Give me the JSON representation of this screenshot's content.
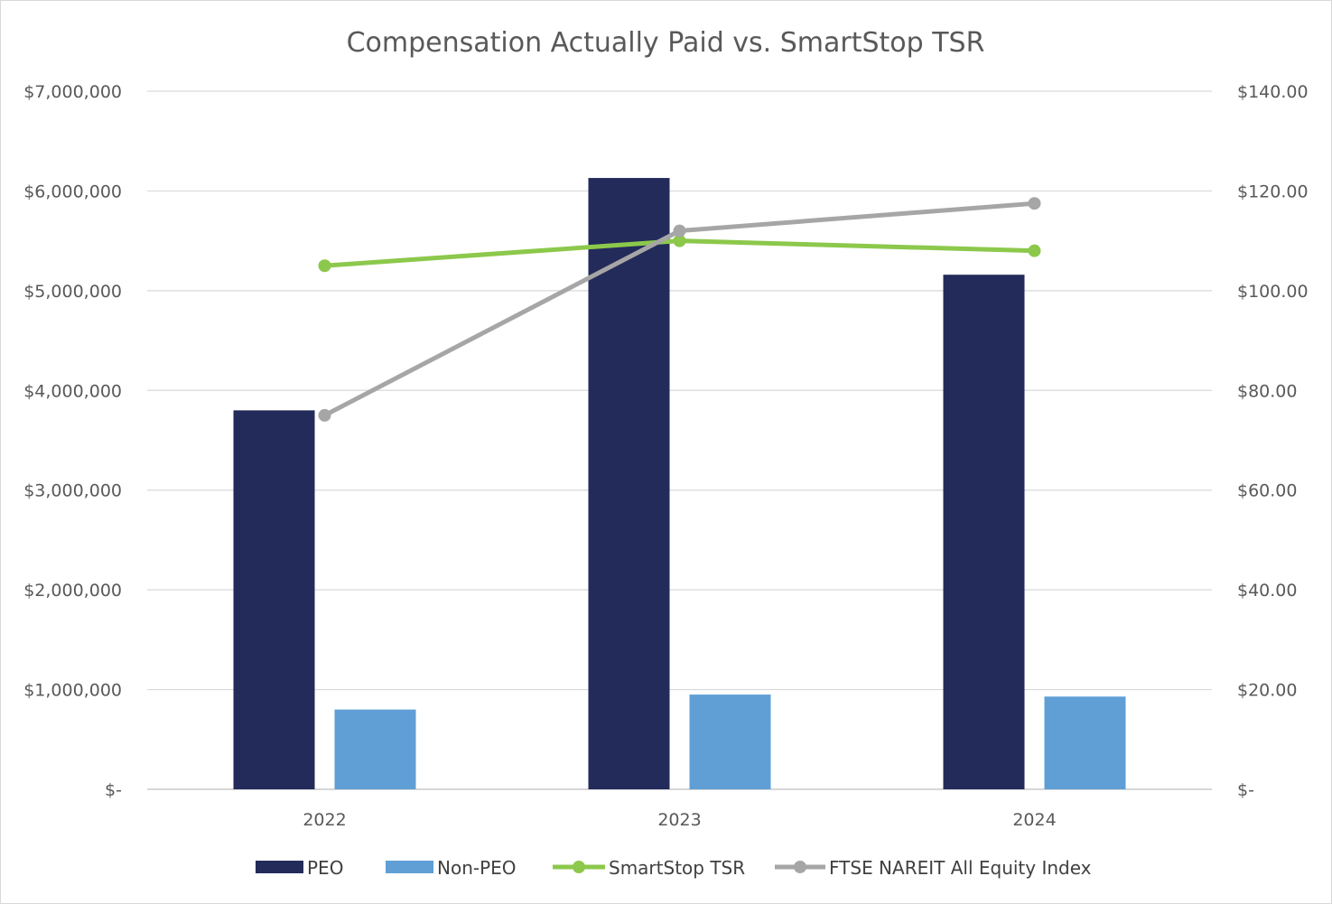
{
  "chart_data": {
    "type": "bar",
    "title": "Compensation Actually Paid vs. SmartStop TSR",
    "categories": [
      "2022",
      "2023",
      "2024"
    ],
    "y_left": {
      "min": 0,
      "max": 7000000,
      "ticks": [
        0,
        1000000,
        2000000,
        3000000,
        4000000,
        5000000,
        6000000,
        7000000
      ],
      "tick_labels": [
        "$-",
        "$1,000,000",
        "$2,000,000",
        "$3,000,000",
        "$4,000,000",
        "$5,000,000",
        "$6,000,000",
        "$7,000,000"
      ]
    },
    "y_right": {
      "min": 0,
      "max": 140,
      "ticks": [
        0,
        20,
        40,
        60,
        80,
        100,
        120,
        140
      ],
      "tick_labels": [
        "$-",
        "$20.00",
        "$40.00",
        "$60.00",
        "$80.00",
        "$100.00",
        "$120.00",
        "$140.00"
      ]
    },
    "bar_series": [
      {
        "name": "PEO",
        "color": "#232b5a",
        "values": [
          3800000,
          6130000,
          5160000
        ]
      },
      {
        "name": "Non-PEO",
        "color": "#5f9fd6",
        "values": [
          800000,
          950000,
          930000
        ]
      }
    ],
    "line_series": [
      {
        "name": "SmartStop TSR",
        "color": "#8cc84b",
        "axis": "right",
        "values": [
          105,
          110,
          108
        ]
      },
      {
        "name": "FTSE NAREIT All Equity Index",
        "color": "#a6a6a6",
        "axis": "right",
        "values": [
          75,
          112,
          117.5
        ]
      }
    ],
    "grid": true,
    "legend_position": "bottom"
  }
}
